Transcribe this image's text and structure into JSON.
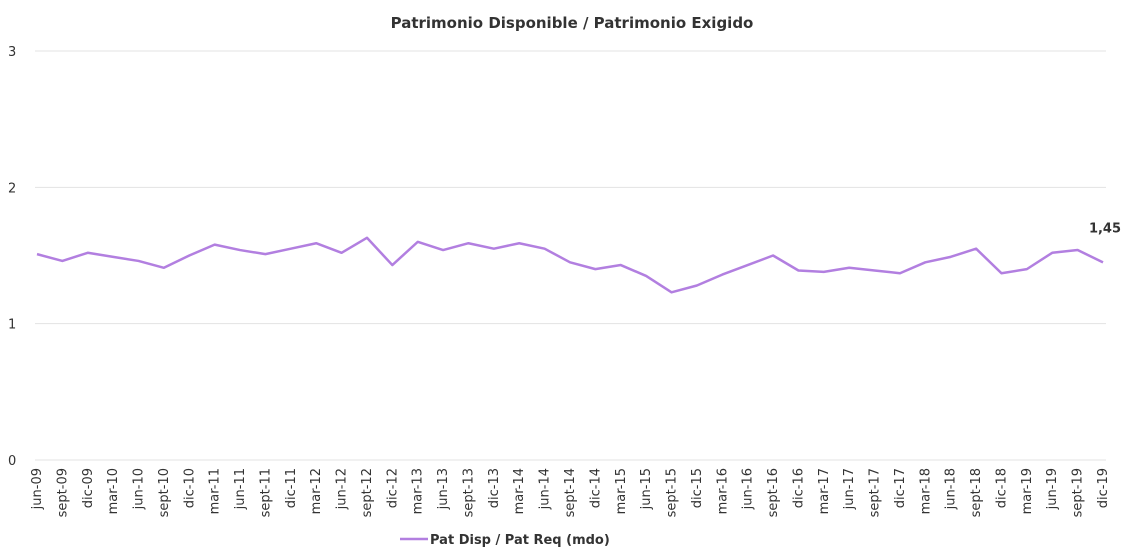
{
  "chart_data": {
    "type": "line",
    "title": "Patrimonio Disponible / Patrimonio Exigido",
    "categories": [
      "jun-09",
      "sept-09",
      "dic-09",
      "mar-10",
      "jun-10",
      "sept-10",
      "dic-10",
      "mar-11",
      "jun-11",
      "sept-11",
      "dic-11",
      "mar-12",
      "jun-12",
      "sept-12",
      "dic-12",
      "mar-13",
      "jun-13",
      "sept-13",
      "dic-13",
      "mar-14",
      "jun-14",
      "sept-14",
      "dic-14",
      "mar-15",
      "jun-15",
      "sept-15",
      "dic-15",
      "mar-16",
      "jun-16",
      "sept-16",
      "dic-16",
      "mar-17",
      "jun-17",
      "sept-17",
      "dic-17",
      "mar-18",
      "jun-18",
      "sept-18",
      "dic-18",
      "mar-19",
      "jun-19",
      "sept-19",
      "dic-19"
    ],
    "series": [
      {
        "name": "Pat Disp / Pat Req (mdo)",
        "color": "#b27fe0",
        "values": [
          1.51,
          1.46,
          1.52,
          1.49,
          1.46,
          1.41,
          1.5,
          1.58,
          1.54,
          1.51,
          1.55,
          1.59,
          1.52,
          1.63,
          1.43,
          1.6,
          1.54,
          1.59,
          1.55,
          1.59,
          1.55,
          1.45,
          1.4,
          1.43,
          1.35,
          1.23,
          1.28,
          1.36,
          1.43,
          1.5,
          1.39,
          1.38,
          1.41,
          1.39,
          1.37,
          1.45,
          1.49,
          1.55,
          1.37,
          1.4,
          1.52,
          1.54,
          1.45
        ],
        "value_labels": [
          null,
          null,
          null,
          null,
          null,
          null,
          null,
          null,
          null,
          null,
          null,
          null,
          null,
          null,
          null,
          null,
          null,
          null,
          null,
          null,
          null,
          null,
          null,
          null,
          null,
          null,
          null,
          null,
          null,
          null,
          null,
          null,
          null,
          null,
          null,
          null,
          null,
          null,
          null,
          null,
          null,
          null,
          "1,45"
        ]
      }
    ],
    "ylim": [
      0,
      3
    ],
    "yticks": [
      0,
      1,
      2,
      3
    ],
    "grid": true,
    "legend": "bottom"
  }
}
